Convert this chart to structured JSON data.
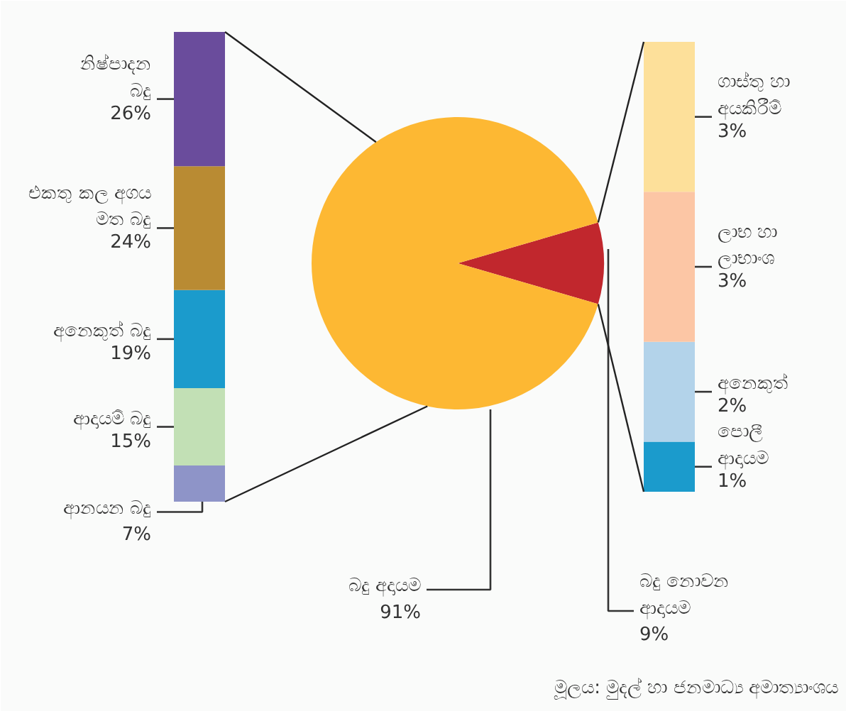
{
  "chart_data": [
    {
      "type": "bar",
      "stacked": true,
      "categories": [
        null
      ],
      "series": [
        {
          "name": "ආනයන බදු",
          "color": "#8e94c8",
          "values": [
            7
          ],
          "value_labels": [
            "7%"
          ]
        },
        {
          "name": "ආදායම් බදු",
          "color": "#c2e0b5",
          "values": [
            15
          ],
          "value_labels": [
            "15%"
          ]
        },
        {
          "name": "අනෙකුත් බදු",
          "color": "#1b9bcc",
          "values": [
            19
          ],
          "value_labels": [
            "19%"
          ]
        },
        {
          "name": "එකතු කල අගය මත බදු",
          "color": "#b98b33",
          "values": [
            24
          ],
          "value_labels": [
            "24%"
          ]
        },
        {
          "name": "නිෂ්පාදන බදු",
          "color": "#6a4c9c",
          "values": [
            26
          ],
          "value_labels": [
            "26%"
          ]
        }
      ]
    },
    {
      "type": "pie",
      "categories": [
        "බදු අදායම",
        "බදු නොවන ආදායම"
      ],
      "values": [
        91,
        9
      ],
      "colors": [
        "#fdb833",
        "#c1272d"
      ],
      "value_labels": [
        "91%",
        "9%"
      ],
      "annotations": [
        "මූලය: මුදල් හා ජනමාධ්‍ය අමාත්‍යාංශය"
      ]
    },
    {
      "type": "bar",
      "stacked": true,
      "categories": [
        null
      ],
      "series": [
        {
          "name": "පොලී ආදායම",
          "color": "#1b9bcc",
          "values": [
            1
          ],
          "value_labels": [
            "1%"
          ]
        },
        {
          "name": "අනෙකුත්",
          "color": "#b3d3ea",
          "values": [
            2
          ],
          "value_labels": [
            "2%"
          ]
        },
        {
          "name": "ලාභ හා ලාභාංශ",
          "color": "#fcc6a5",
          "values": [
            3
          ],
          "value_labels": [
            "3%"
          ]
        },
        {
          "name": "ගාස්තු හා අයකිරීම්",
          "color": "#fde09a",
          "values": [
            3
          ],
          "value_labels": [
            "3%"
          ]
        }
      ]
    }
  ]
}
